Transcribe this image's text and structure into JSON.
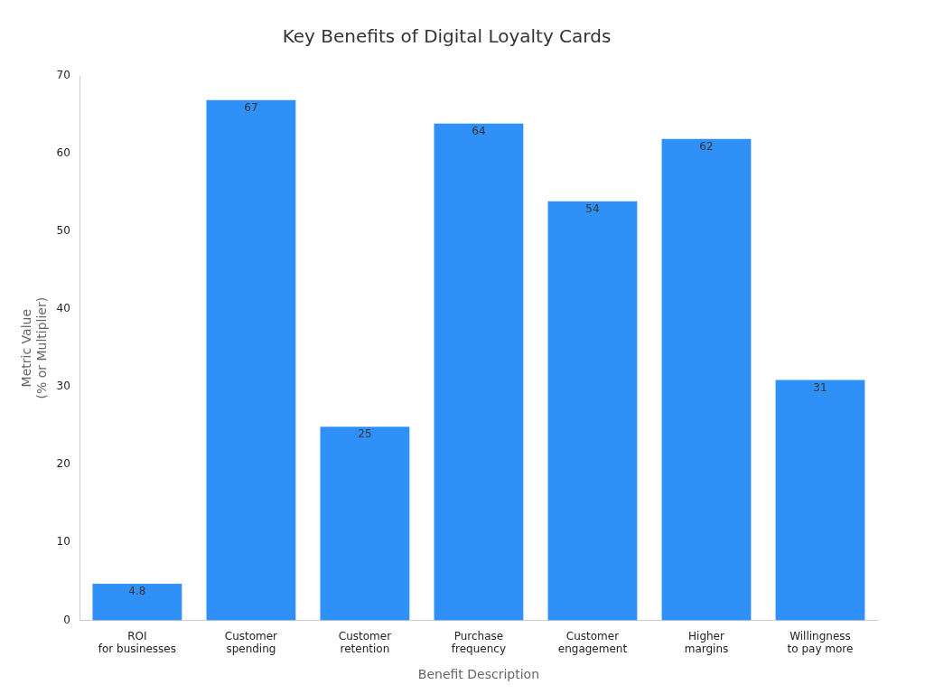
{
  "chart_data": {
    "type": "bar",
    "title": "Key Benefits of Digital Loyalty Cards",
    "xlabel": "Benefit Description",
    "ylabel": "Metric Value\n(% or Multiplier)",
    "categories": [
      "ROI\nfor businesses",
      "Customer\nspending",
      "Customer\nretention",
      "Purchase\nfrequency",
      "Customer\nengagement",
      "Higher\nmargins",
      "Willingness\nto pay more"
    ],
    "values": [
      4.8,
      67,
      25,
      64,
      54,
      62,
      31
    ],
    "color": "#2f91f8",
    "ylim": [
      0,
      70
    ],
    "yticks": [
      0,
      10,
      20,
      30,
      40,
      50,
      60,
      70
    ],
    "grid": false,
    "data_labels": true
  }
}
